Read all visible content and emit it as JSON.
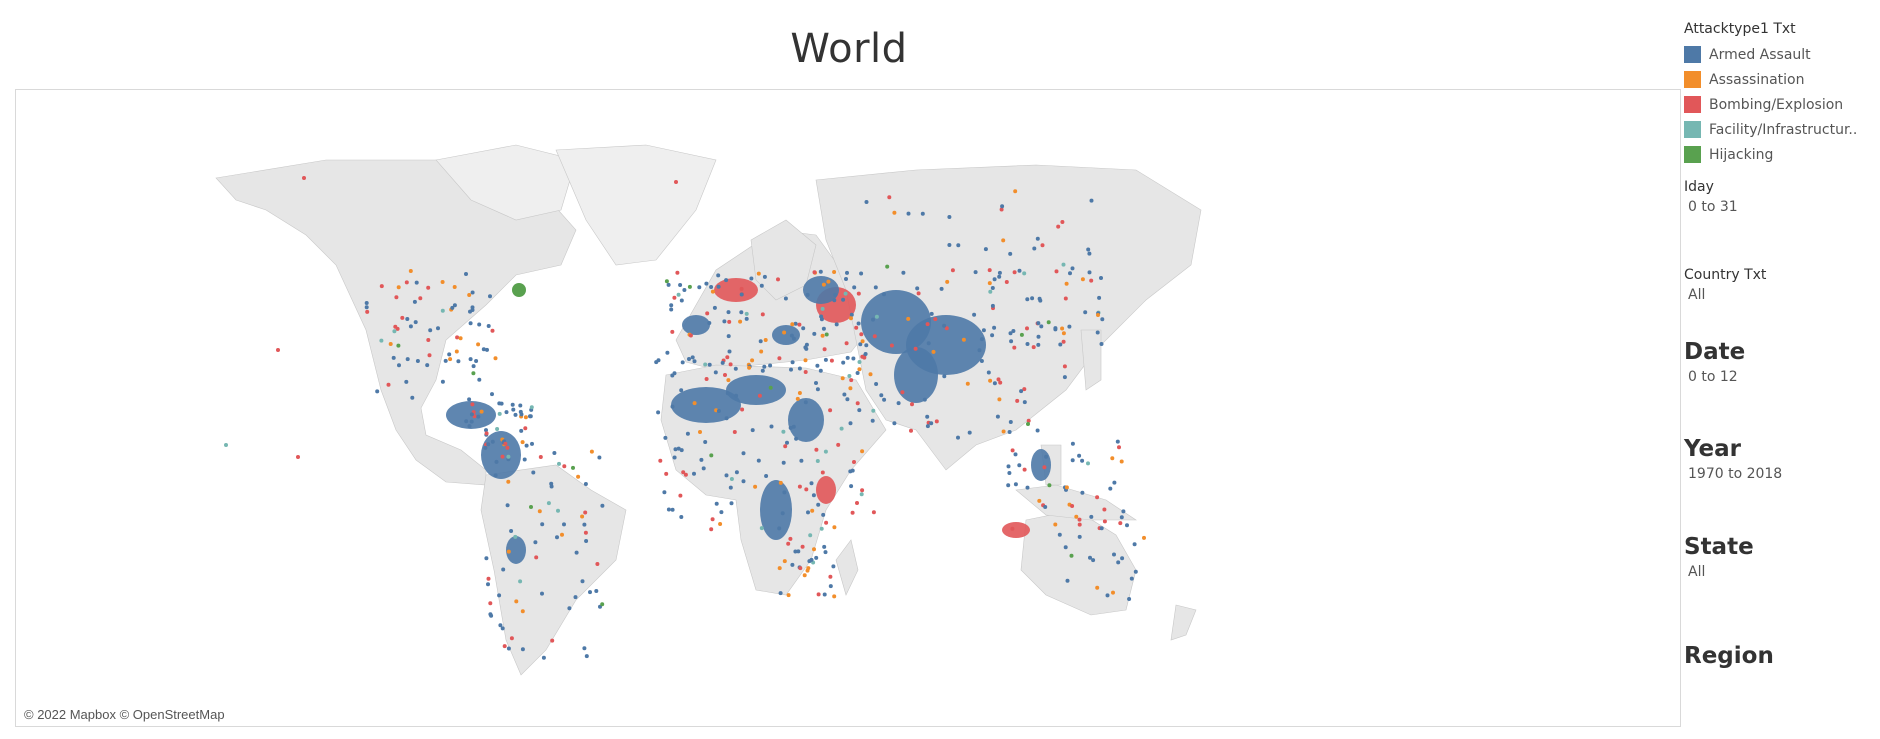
{
  "title": "World",
  "attribution": "© 2022 Mapbox © OpenStreetMap",
  "legend": {
    "title": "Attacktype1 Txt",
    "items": [
      {
        "label": "Armed Assault",
        "color": "#4e79a7"
      },
      {
        "label": "Assassination",
        "color": "#f28e2b"
      },
      {
        "label": "Bombing/Explosion",
        "color": "#e15759"
      },
      {
        "label": "Facility/Infrastructur..",
        "color": "#76b7b2"
      },
      {
        "label": "Hijacking",
        "color": "#59a14f"
      }
    ]
  },
  "filters": {
    "iday": {
      "title": "Iday",
      "value": "0 to 31"
    },
    "country": {
      "title": "Country Txt",
      "value": "All"
    },
    "date": {
      "title": "Date",
      "value": "0 to 12"
    },
    "year": {
      "title": "Year",
      "value": "1970 to 2018"
    },
    "state": {
      "title": "State",
      "value": "All"
    },
    "region": {
      "title": "Region"
    }
  },
  "map": {
    "land_color": "#e6e6e6",
    "border_color": "#c8c8c8",
    "ice_color": "#efefef"
  }
}
